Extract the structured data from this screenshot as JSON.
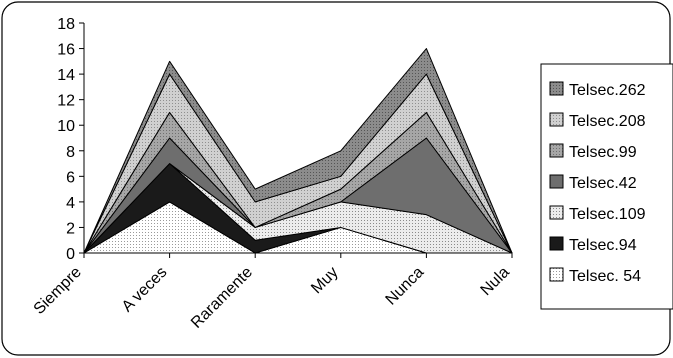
{
  "chart_data": {
    "type": "area",
    "stacked": true,
    "categories": [
      "Siempre",
      "A veces",
      "Raramente",
      "Muy",
      "Nunca",
      "Nula"
    ],
    "ylim": [
      0,
      18
    ],
    "yticks": [
      0,
      2,
      4,
      6,
      8,
      10,
      12,
      14,
      16,
      18
    ],
    "grid": false,
    "legend_position": "right",
    "series": [
      {
        "name": "Telsec. 54",
        "values": [
          0,
          4,
          0,
          2,
          0,
          0
        ],
        "color": "#ffffff",
        "pattern": "dots"
      },
      {
        "name": "Telsec.94",
        "values": [
          0,
          3,
          1,
          0,
          0,
          0
        ],
        "color": "#1a1a1a",
        "pattern": "none"
      },
      {
        "name": "Telsec.109",
        "values": [
          0,
          0,
          1,
          2,
          3,
          0
        ],
        "color": "#efefef",
        "pattern": "dots"
      },
      {
        "name": "Telsec.42",
        "values": [
          0,
          2,
          0,
          0,
          6,
          0
        ],
        "color": "#6e6e6e",
        "pattern": "none"
      },
      {
        "name": "Telsec.99",
        "values": [
          0,
          2,
          0,
          1,
          2,
          0
        ],
        "color": "#a6a6a6",
        "pattern": "dots"
      },
      {
        "name": "Telsec.208",
        "values": [
          0,
          3,
          2,
          1,
          3,
          0
        ],
        "color": "#cfcfcf",
        "pattern": "dots"
      },
      {
        "name": "Telsec.262",
        "values": [
          0,
          1,
          1,
          2,
          2,
          0
        ],
        "color": "#8c8c8c",
        "pattern": "dots"
      }
    ]
  }
}
